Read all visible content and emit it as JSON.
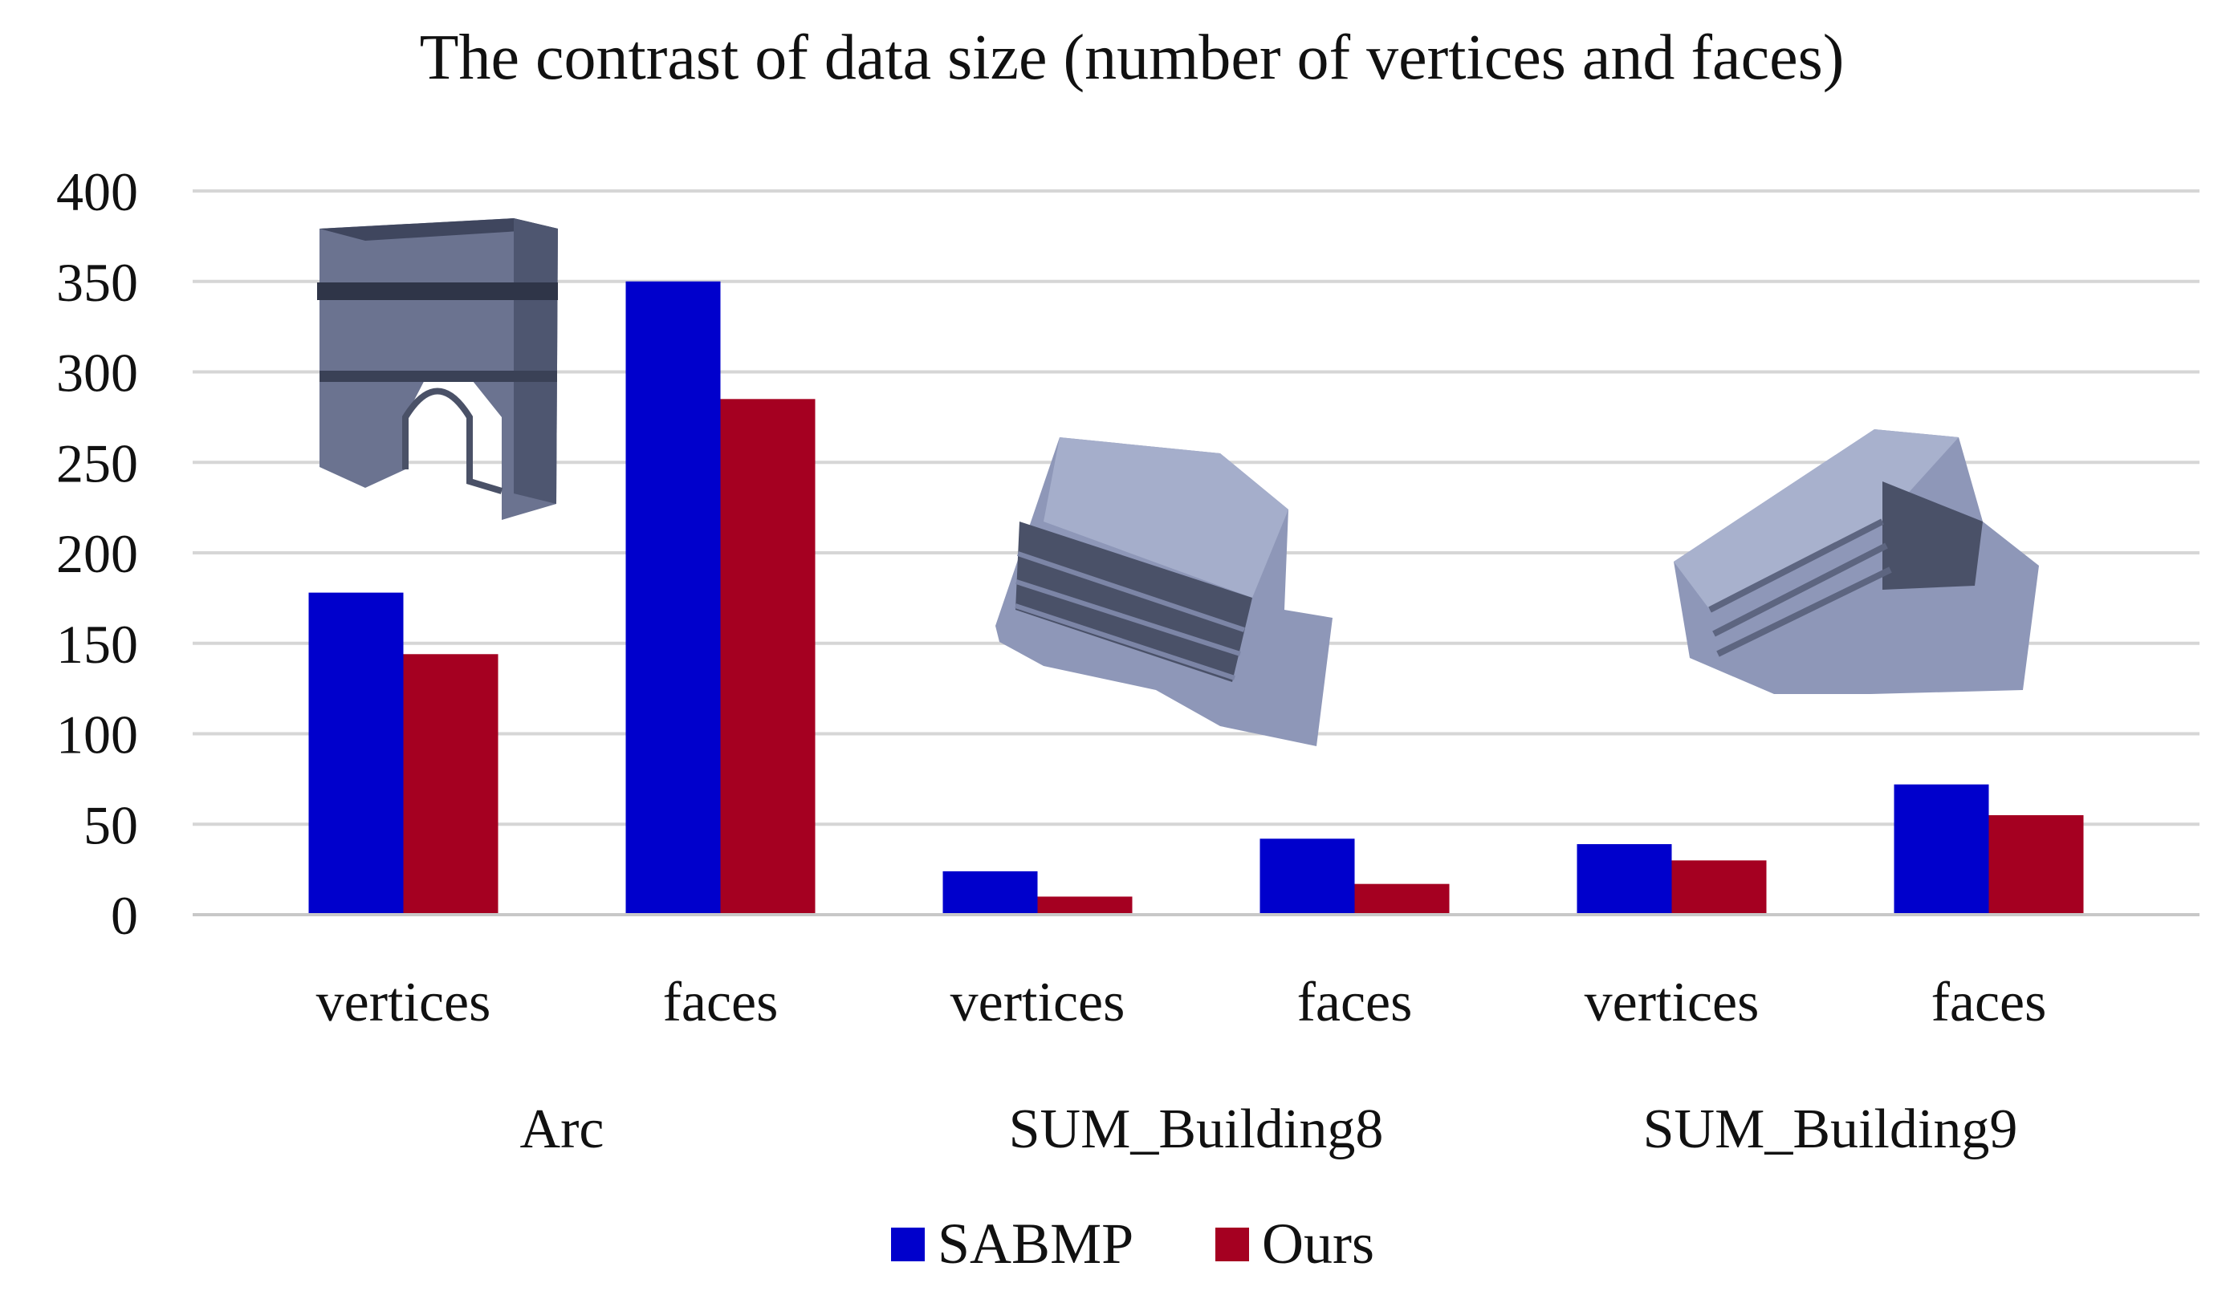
{
  "chart_data": {
    "type": "bar",
    "title": "The contrast of data size (number of vertices and faces)",
    "xlabel": "",
    "ylabel": "",
    "ylim": [
      0,
      400
    ],
    "yticks": [
      "0",
      "50",
      "100",
      "150",
      "200",
      "250",
      "300",
      "350",
      "400"
    ],
    "grid": true,
    "legend_position": "bottom",
    "categories": [
      "vertices",
      "faces",
      "vertices",
      "faces",
      "vertices",
      "faces"
    ],
    "groups": [
      {
        "label": "Arc",
        "categories": [
          "vertices",
          "faces"
        ]
      },
      {
        "label": "SUM_Building8",
        "categories": [
          "vertices",
          "faces"
        ]
      },
      {
        "label": "SUM_Building9",
        "categories": [
          "vertices",
          "faces"
        ]
      }
    ],
    "series": [
      {
        "name": "SABMP",
        "color": "#0000cc",
        "values": [
          178,
          350,
          24,
          42,
          39,
          72
        ]
      },
      {
        "name": "Ours",
        "color": "#a50021",
        "values": [
          144,
          285,
          10,
          17,
          30,
          55
        ]
      }
    ],
    "images": [
      {
        "icon": "arc-model-icon",
        "group": "Arc"
      },
      {
        "icon": "building8-model-icon",
        "group": "SUM_Building8"
      },
      {
        "icon": "building9-model-icon",
        "group": "SUM_Building9"
      }
    ]
  }
}
